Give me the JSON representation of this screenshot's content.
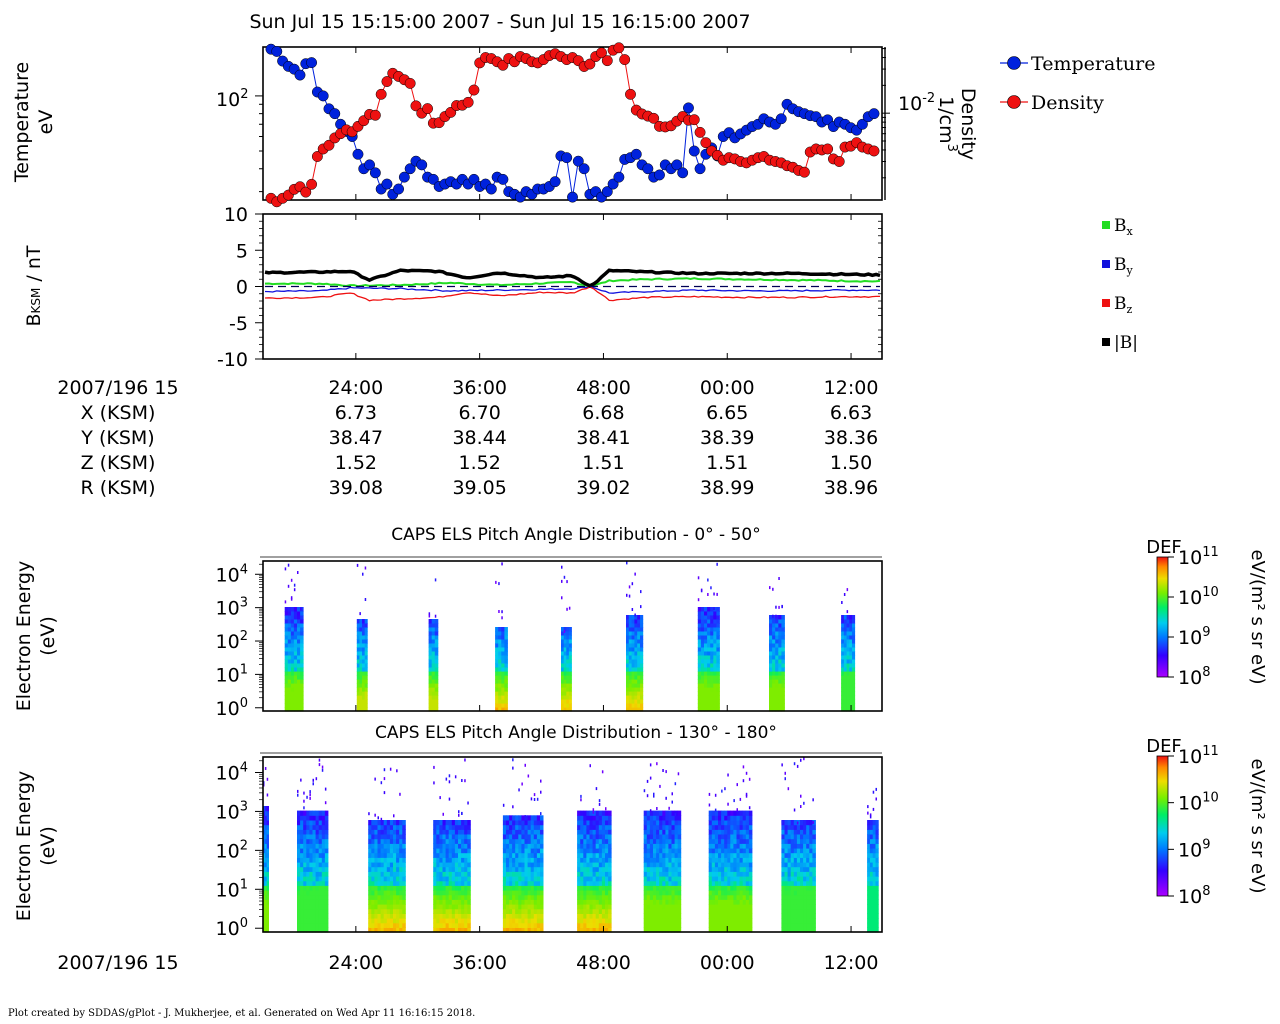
{
  "header": {
    "title": "Sun Jul 15 15:15:00 2007 - Sun Jul 15 16:15:00 2007"
  },
  "footer": {
    "credit": "Plot created by SDDAS/gPlot - J. Mukherjee, et al.  Generated on Wed Apr 11 16:16:15 2018."
  },
  "colors": {
    "temperature": "#0022dd",
    "density": "#ee1111",
    "bx": "#22dd22",
    "by": "#1111dd",
    "bz": "#ee1111",
    "btot": "#000000"
  },
  "chart_data": [
    {
      "type": "line",
      "id": "plasma-moments",
      "left_axis": {
        "label_line1": "Temperature",
        "label_line2": "eV",
        "scale": "log",
        "tick_labels": [
          "10",
          "2"
        ]
      },
      "right_axis": {
        "label_line1": "Density",
        "label_line2": "1/cm",
        "label_sup": "3",
        "scale": "log",
        "tick_labels": [
          "10",
          "-2"
        ]
      },
      "series": [
        {
          "name": "Temperature",
          "legend": "Temperature",
          "color": "#0022dd",
          "values": [
            180,
            175,
            155,
            145,
            140,
            130,
            150,
            152,
            105,
            100,
            85,
            80,
            70,
            64,
            60,
            48,
            40,
            42,
            38,
            31,
            33,
            29,
            31,
            36,
            40,
            44,
            42,
            36,
            35,
            32,
            33,
            34,
            33,
            35,
            33,
            35,
            32,
            33,
            31,
            36,
            35,
            30,
            29,
            28,
            30,
            29,
            31,
            31,
            32,
            34,
            47,
            46,
            28,
            44,
            40,
            29,
            30,
            28,
            30,
            33,
            36,
            45,
            46,
            48,
            42,
            40,
            36,
            37,
            42,
            40,
            42,
            38,
            86,
            50,
            40,
            48,
            52,
            47,
            60,
            63,
            59,
            62,
            65,
            68,
            70,
            75,
            72,
            70,
            75,
            90,
            85,
            82,
            80,
            78,
            77,
            72,
            74,
            68,
            72,
            70,
            67,
            65,
            70,
            77,
            80
          ]
        },
        {
          "name": "Density",
          "legend": "Density",
          "color": "#ee1111",
          "values": [
            0.0012,
            0.0011,
            0.0012,
            0.0013,
            0.0015,
            0.0016,
            0.0014,
            0.0017,
            0.0034,
            0.0041,
            0.0045,
            0.0054,
            0.006,
            0.0066,
            0.0063,
            0.0072,
            0.0083,
            0.0097,
            0.0095,
            0.016,
            0.022,
            0.027,
            0.025,
            0.023,
            0.021,
            0.012,
            0.01,
            0.0112,
            0.0078,
            0.0079,
            0.0092,
            0.0102,
            0.0121,
            0.0122,
            0.0131,
            0.0178,
            0.035,
            0.04,
            0.039,
            0.036,
            0.033,
            0.039,
            0.036,
            0.041,
            0.039,
            0.036,
            0.035,
            0.038,
            0.042,
            0.044,
            0.041,
            0.038,
            0.04,
            0.037,
            0.032,
            0.034,
            0.041,
            0.045,
            0.037,
            0.048,
            0.051,
            0.038,
            0.016,
            0.0108,
            0.0098,
            0.0093,
            0.0088,
            0.0072,
            0.0071,
            0.0073,
            0.0082,
            0.0092,
            0.0084,
            0.0085,
            0.0062,
            0.0048,
            0.0039,
            0.0035,
            0.0031,
            0.0033,
            0.0032,
            0.003,
            0.0029,
            0.0031,
            0.0033,
            0.0034,
            0.0031,
            0.003,
            0.0029,
            0.0027,
            0.0026,
            0.0024,
            0.0023,
            0.0038,
            0.0041,
            0.004,
            0.0041,
            0.0032,
            0.003,
            0.0043,
            0.0044,
            0.0048,
            0.0043,
            0.0041,
            0.0039
          ]
        }
      ]
    },
    {
      "type": "line",
      "id": "magnetic-field",
      "y_axis": {
        "label_main": "B",
        "label_sub": "KSM",
        "label_rest": " / nT",
        "range": [
          -10,
          10
        ],
        "tick_labels": [
          "10",
          "5",
          "0",
          "-5",
          "-10"
        ],
        "ticks": [
          10,
          5,
          0,
          -5,
          -10
        ]
      },
      "legend": [
        {
          "label": "B",
          "sub": "x",
          "color": "#22dd22"
        },
        {
          "label": "B",
          "sub": "y",
          "color": "#1111dd"
        },
        {
          "label": "B",
          "sub": "z",
          "color": "#ee1111"
        },
        {
          "label": "|B|",
          "sub": "",
          "color": "#000000"
        }
      ],
      "series": [
        {
          "name": "Bx",
          "color": "#22dd22",
          "width": 2,
          "x": [
            0,
            0.09,
            0.14,
            0.22,
            0.3,
            0.38,
            0.5,
            0.53,
            0.56,
            0.62,
            0.7,
            0.78,
            0.86,
            0.93,
            1
          ],
          "values": [
            0.4,
            0.4,
            0.1,
            0.2,
            0.5,
            0.2,
            0.6,
            0.0,
            0.8,
            1.0,
            1.1,
            1.0,
            0.9,
            0.8,
            0.7
          ]
        },
        {
          "name": "By",
          "color": "#1111dd",
          "width": 1.3,
          "x": [
            0,
            0.09,
            0.14,
            0.22,
            0.3,
            0.38,
            0.5,
            0.53,
            0.56,
            0.62,
            0.7,
            0.78,
            0.86,
            0.93,
            1
          ],
          "values": [
            -0.7,
            -0.6,
            -0.2,
            -0.3,
            -0.6,
            -0.5,
            -0.3,
            0.0,
            -0.9,
            -0.7,
            -0.5,
            -0.6,
            -0.6,
            -0.5,
            -0.5
          ]
        },
        {
          "name": "Bz",
          "color": "#ee1111",
          "width": 1.3,
          "x": [
            0,
            0.09,
            0.14,
            0.17,
            0.22,
            0.28,
            0.33,
            0.38,
            0.45,
            0.5,
            0.53,
            0.56,
            0.62,
            0.7,
            0.78,
            0.86,
            0.93,
            1
          ],
          "values": [
            -1.6,
            -1.5,
            -0.9,
            -1.9,
            -1.7,
            -1.5,
            -0.8,
            -1.3,
            -0.8,
            -0.9,
            0.0,
            -1.9,
            -1.5,
            -1.4,
            -1.5,
            -1.5,
            -1.4,
            -1.4
          ]
        },
        {
          "name": "|B|",
          "color": "#000000",
          "width": 3.5,
          "x": [
            0,
            0.09,
            0.14,
            0.17,
            0.22,
            0.28,
            0.33,
            0.38,
            0.45,
            0.5,
            0.53,
            0.56,
            0.62,
            0.7,
            0.78,
            0.86,
            0.93,
            1
          ],
          "values": [
            1.9,
            2.0,
            2.1,
            0.9,
            2.2,
            2.1,
            1.2,
            1.9,
            1.2,
            1.5,
            0.0,
            2.2,
            2.0,
            1.8,
            1.8,
            1.8,
            1.7,
            1.6
          ]
        },
        {
          "name": "zero",
          "color": "#000055",
          "width": 1.2,
          "dash": true,
          "x": [
            0,
            1
          ],
          "values": [
            0,
            0
          ]
        }
      ]
    },
    {
      "type": "table",
      "id": "orbit-table",
      "row_labels": [
        "2007/196 15",
        "X (KSM)",
        "Y (KSM)",
        "Z (KSM)",
        "R (KSM)"
      ],
      "columns": [
        [
          "24:00",
          "6.73",
          "38.47",
          "1.52",
          "39.08"
        ],
        [
          "36:00",
          "6.70",
          "38.44",
          "1.52",
          "39.05"
        ],
        [
          "48:00",
          "6.68",
          "38.41",
          "1.51",
          "39.02"
        ],
        [
          "00:00",
          "6.65",
          "38.39",
          "1.51",
          "38.99"
        ],
        [
          "12:00",
          "6.63",
          "38.36",
          "1.50",
          "38.96"
        ]
      ]
    },
    {
      "type": "heatmap",
      "id": "els-pitch-0-50",
      "title": "CAPS ELS Pitch Angle Distribution - 0° - 50°",
      "y_axis": {
        "label_line1": "Electron Energy",
        "label_line2": "(eV)",
        "scale": "log",
        "range": [
          0.8,
          25000
        ],
        "tick_exponents": [
          "4",
          "3",
          "2",
          "1",
          "0"
        ]
      },
      "colorbar": {
        "title": "DEF",
        "unit": "eV/(m² s sr eV)",
        "tick_exponents": [
          "11",
          "10",
          "9",
          "8"
        ],
        "range": [
          100000000,
          100000000000
        ]
      },
      "bursts": [
        {
          "t": 0.05,
          "w": 0.03,
          "top": 1000,
          "max": 2.5
        },
        {
          "t": 0.16,
          "w": 0.017,
          "top": 400,
          "max": 2.6
        },
        {
          "t": 0.275,
          "w": 0.015,
          "top": 400,
          "max": 2.6
        },
        {
          "t": 0.385,
          "w": 0.02,
          "top": 200,
          "max": 3.1
        },
        {
          "t": 0.49,
          "w": 0.017,
          "top": 200,
          "max": 3.3
        },
        {
          "t": 0.6,
          "w": 0.027,
          "top": 600,
          "max": 2.7
        },
        {
          "t": 0.72,
          "w": 0.035,
          "top": 1000,
          "max": 2.5
        },
        {
          "t": 0.83,
          "w": 0.025,
          "top": 600,
          "max": 2.5
        },
        {
          "t": 0.945,
          "w": 0.022,
          "top": 500,
          "max": 2.4
        }
      ]
    },
    {
      "type": "heatmap",
      "id": "els-pitch-130-180",
      "title": "CAPS ELS Pitch Angle Distribution - 130° - 180°",
      "y_axis": {
        "label_line1": "Electron Energy",
        "label_line2": "(eV)",
        "scale": "log",
        "range": [
          0.8,
          25000
        ],
        "tick_exponents": [
          "4",
          "3",
          "2",
          "1",
          "0"
        ]
      },
      "colorbar": {
        "title": "DEF",
        "unit": "eV/(m² s sr eV)",
        "tick_exponents": [
          "11",
          "10",
          "9",
          "8"
        ],
        "range": [
          100000000,
          100000000000
        ]
      },
      "bursts": [
        {
          "t": 0.0,
          "w": 0.018,
          "top": 1200,
          "max": 2.5
        },
        {
          "t": 0.08,
          "w": 0.05,
          "top": 1000,
          "max": 2.4
        },
        {
          "t": 0.2,
          "w": 0.06,
          "top": 600,
          "max": 2.9
        },
        {
          "t": 0.305,
          "w": 0.06,
          "top": 500,
          "max": 2.9
        },
        {
          "t": 0.42,
          "w": 0.065,
          "top": 700,
          "max": 2.9
        },
        {
          "t": 0.535,
          "w": 0.055,
          "top": 1000,
          "max": 2.8
        },
        {
          "t": 0.645,
          "w": 0.06,
          "top": 800,
          "max": 2.5
        },
        {
          "t": 0.755,
          "w": 0.07,
          "top": 900,
          "max": 2.5
        },
        {
          "t": 0.865,
          "w": 0.055,
          "top": 500,
          "max": 2.4
        },
        {
          "t": 0.985,
          "w": 0.018,
          "top": 500,
          "max": 2.3
        }
      ]
    }
  ],
  "time_axis": {
    "label": "2007/196 15",
    "tick_labels": [
      "24:00",
      "36:00",
      "48:00",
      "00:00",
      "12:00"
    ],
    "tick_fractions": [
      0.15,
      0.35,
      0.55,
      0.75,
      0.95
    ]
  }
}
